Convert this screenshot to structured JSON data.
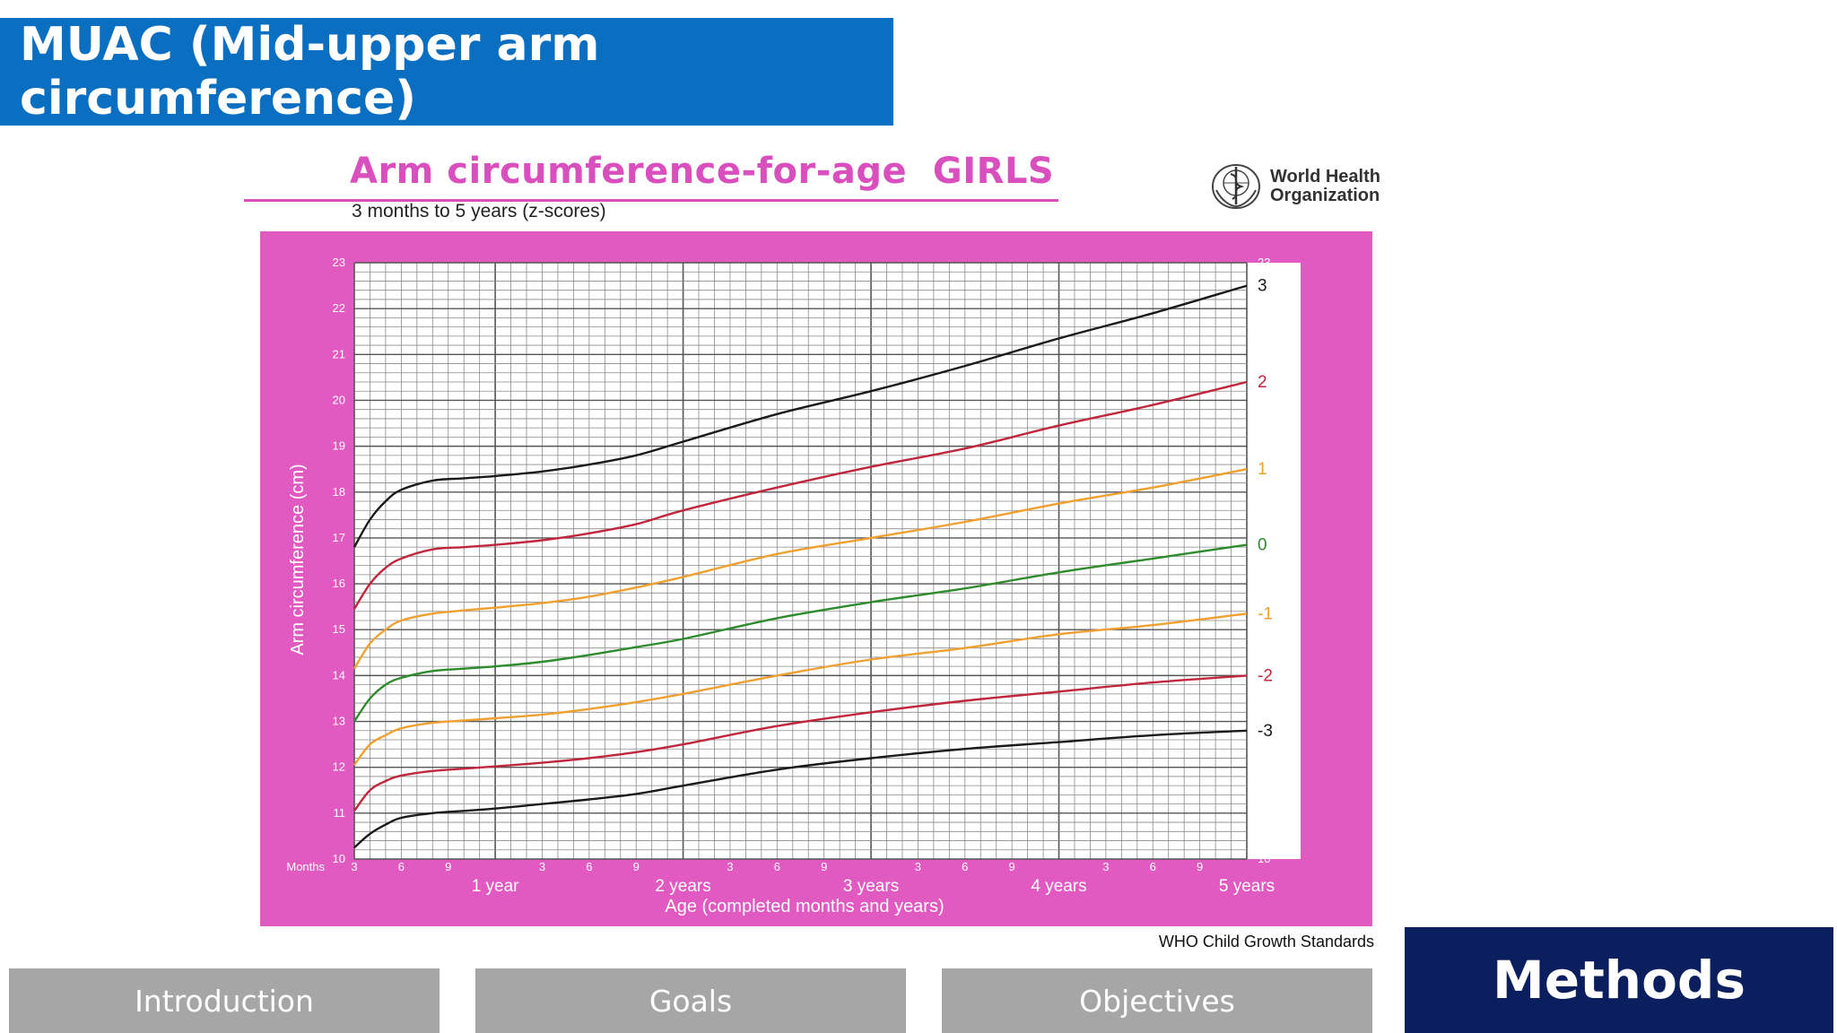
{
  "slide": {
    "title": "MUAC (Mid-upper arm circumference)"
  },
  "logo": {
    "line1": "World Health",
    "line2": "Organization",
    "icon": "who-emblem-icon"
  },
  "chart_data": {
    "type": "line",
    "title": "Arm circumference-for-age  GIRLS",
    "subtitle": "3 months to 5 years (z-scores)",
    "xlabel": "Age (completed months and years)",
    "ylabel": "Arm circumference (cm)",
    "x_unit_label": "Months",
    "source": "WHO Child Growth Standards",
    "xlim": [
      3,
      60
    ],
    "ylim": [
      10,
      23
    ],
    "grid": true,
    "year_ticks": [
      {
        "x": 12,
        "label": "1 year"
      },
      {
        "x": 24,
        "label": "2 years"
      },
      {
        "x": 36,
        "label": "3 years"
      },
      {
        "x": 48,
        "label": "4 years"
      },
      {
        "x": 60,
        "label": "5 years"
      }
    ],
    "month_ticks": [
      {
        "x": 3,
        "label": "3"
      },
      {
        "x": 6,
        "label": "6"
      },
      {
        "x": 9,
        "label": "9"
      },
      {
        "x": 15,
        "label": "3"
      },
      {
        "x": 18,
        "label": "6"
      },
      {
        "x": 21,
        "label": "9"
      },
      {
        "x": 27,
        "label": "3"
      },
      {
        "x": 30,
        "label": "6"
      },
      {
        "x": 33,
        "label": "9"
      },
      {
        "x": 39,
        "label": "3"
      },
      {
        "x": 42,
        "label": "6"
      },
      {
        "x": 45,
        "label": "9"
      },
      {
        "x": 51,
        "label": "3"
      },
      {
        "x": 54,
        "label": "6"
      },
      {
        "x": 57,
        "label": "9"
      }
    ],
    "y_ticks": [
      "10",
      "11",
      "12",
      "13",
      "14",
      "15",
      "16",
      "17",
      "18",
      "19",
      "20",
      "21",
      "22",
      "23"
    ],
    "x": [
      3,
      4,
      5,
      6,
      8,
      10,
      12,
      15,
      18,
      21,
      24,
      30,
      36,
      42,
      48,
      54,
      60
    ],
    "series": [
      {
        "name": "3",
        "color": "#1a1a1a",
        "values": [
          16.8,
          17.4,
          17.8,
          18.05,
          18.25,
          18.3,
          18.35,
          18.45,
          18.6,
          18.8,
          19.1,
          19.7,
          20.2,
          20.75,
          21.35,
          21.9,
          22.5
        ]
      },
      {
        "name": "2",
        "color": "#c0263d",
        "values": [
          15.45,
          16.0,
          16.35,
          16.55,
          16.75,
          16.8,
          16.85,
          16.95,
          17.1,
          17.3,
          17.6,
          18.1,
          18.55,
          18.95,
          19.45,
          19.9,
          20.4
        ]
      },
      {
        "name": "1",
        "color": "#f0a030",
        "values": [
          14.15,
          14.7,
          15.0,
          15.2,
          15.35,
          15.42,
          15.48,
          15.58,
          15.72,
          15.92,
          16.15,
          16.65,
          17.0,
          17.35,
          17.75,
          18.1,
          18.5
        ]
      },
      {
        "name": "0",
        "color": "#2e8b2e",
        "values": [
          13.0,
          13.5,
          13.8,
          13.95,
          14.1,
          14.15,
          14.2,
          14.3,
          14.45,
          14.62,
          14.8,
          15.25,
          15.6,
          15.9,
          16.25,
          16.55,
          16.85
        ]
      },
      {
        "name": "-1",
        "color": "#f0a030",
        "values": [
          12.05,
          12.5,
          12.7,
          12.85,
          12.97,
          13.02,
          13.07,
          13.15,
          13.27,
          13.42,
          13.6,
          14.0,
          14.35,
          14.6,
          14.9,
          15.1,
          15.35
        ]
      },
      {
        "name": "-2",
        "color": "#c0263d",
        "values": [
          11.05,
          11.5,
          11.7,
          11.82,
          11.92,
          11.97,
          12.02,
          12.1,
          12.2,
          12.33,
          12.5,
          12.9,
          13.2,
          13.45,
          13.65,
          13.85,
          14.0
        ]
      },
      {
        "name": "-3",
        "color": "#1a1a1a",
        "values": [
          10.25,
          10.55,
          10.75,
          10.9,
          11.0,
          11.05,
          11.1,
          11.2,
          11.3,
          11.42,
          11.6,
          11.95,
          12.2,
          12.4,
          12.55,
          12.7,
          12.8
        ]
      }
    ]
  },
  "nav": {
    "introduction": "Introduction",
    "goals": "Goals",
    "objectives": "Objectives",
    "methods": "Methods"
  },
  "colors": {
    "title_bar": "#0b6fc1",
    "chart_frame": "#e05ac1",
    "nav_inactive": "#a6a6a6",
    "nav_active": "#0b1f5e"
  }
}
